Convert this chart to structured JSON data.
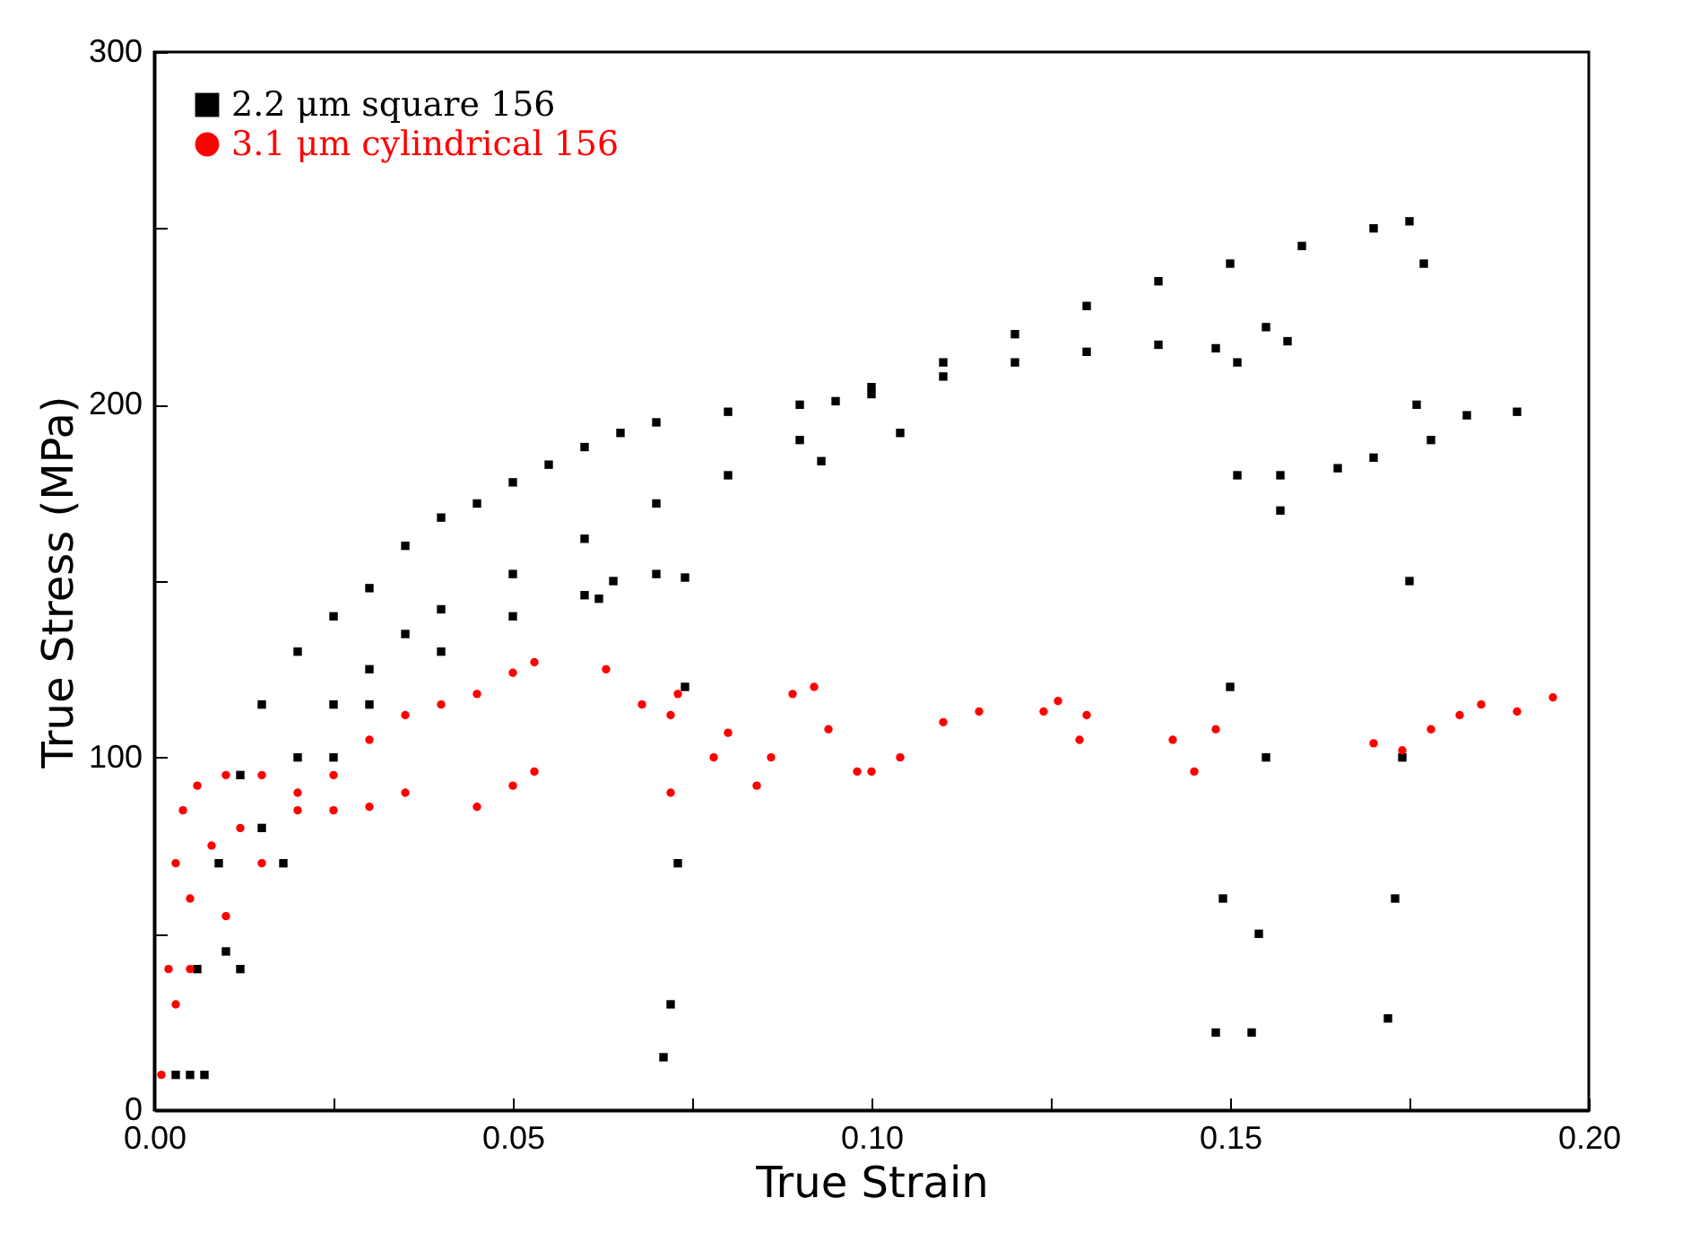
{
  "chart_data": {
    "type": "scatter",
    "xlabel": "True Strain",
    "ylabel": "True Stress (MPa)",
    "xlim": [
      0,
      0.2
    ],
    "ylim": [
      0,
      300
    ],
    "xticks": [
      {
        "value": 0,
        "label": "0.00"
      },
      {
        "value": 0.025,
        "label": null
      },
      0.05,
      {
        "value": 0.075,
        "label": null
      },
      {
        "value": 0.1,
        "label": "0.10"
      },
      {
        "value": 0.125,
        "label": null
      },
      0.15,
      {
        "value": 0.175,
        "label": null
      },
      {
        "value": 0.2,
        "label": "0.20"
      }
    ],
    "yticks": [
      0,
      {
        "value": 50,
        "label": null
      },
      100,
      {
        "value": 150,
        "label": null
      },
      200,
      {
        "value": 250,
        "label": null
      },
      300
    ],
    "grid": false,
    "legend": "top left",
    "series": [
      {
        "name": "2.2 μm square   156",
        "color": "#000000",
        "marker": "square",
        "x": [
          0.003,
          0.006,
          0.009,
          0.012,
          0.015,
          0.02,
          0.025,
          0.03,
          0.035,
          0.04,
          0.045,
          0.05,
          0.055,
          0.06,
          0.065,
          0.07,
          0.08,
          0.09,
          0.095,
          0.1,
          0.11,
          0.12,
          0.13,
          0.14,
          0.15,
          0.16,
          0.17,
          0.175,
          0.177,
          0.176,
          0.175,
          0.174,
          0.173,
          0.172,
          0.005,
          0.01,
          0.015,
          0.02,
          0.025,
          0.03,
          0.035,
          0.04,
          0.05,
          0.06,
          0.07,
          0.08,
          0.09,
          0.1,
          0.11,
          0.12,
          0.13,
          0.14,
          0.148,
          0.151,
          0.151,
          0.15,
          0.149,
          0.148,
          0.155,
          0.158,
          0.157,
          0.155,
          0.154,
          0.153,
          0.007,
          0.012,
          0.018,
          0.025,
          0.03,
          0.04,
          0.05,
          0.06,
          0.07,
          0.074,
          0.074,
          0.073,
          0.072,
          0.071,
          0.062,
          0.064,
          0.157,
          0.165,
          0.17,
          0.178,
          0.183,
          0.19,
          0.104,
          0.093
        ],
        "values": [
          10,
          40,
          70,
          95,
          115,
          130,
          140,
          148,
          160,
          168,
          172,
          178,
          183,
          188,
          192,
          195,
          198,
          200,
          201,
          205,
          212,
          220,
          228,
          235,
          240,
          245,
          250,
          252,
          240,
          200,
          150,
          100,
          60,
          26,
          10,
          45,
          80,
          100,
          115,
          125,
          135,
          142,
          152,
          162,
          172,
          180,
          190,
          203,
          208,
          212,
          215,
          217,
          216,
          212,
          180,
          120,
          60,
          22,
          222,
          218,
          170,
          100,
          50,
          22,
          10,
          40,
          70,
          100,
          115,
          130,
          140,
          146,
          152,
          151,
          120,
          70,
          30,
          15,
          145,
          150,
          180,
          182,
          185,
          190,
          197,
          198,
          192,
          184
        ]
      },
      {
        "name": "3.1 μm cylindrical   156",
        "color": "#ff0000",
        "marker": "circle",
        "x": [
          0.001,
          0.002,
          0.003,
          0.004,
          0.006,
          0.01,
          0.015,
          0.003,
          0.005,
          0.008,
          0.012,
          0.02,
          0.025,
          0.03,
          0.035,
          0.045,
          0.05,
          0.053,
          0.005,
          0.01,
          0.015,
          0.02,
          0.025,
          0.03,
          0.035,
          0.04,
          0.045,
          0.05,
          0.053,
          0.063,
          0.068,
          0.072,
          0.073,
          0.072,
          0.078,
          0.08,
          0.084,
          0.086,
          0.089,
          0.092,
          0.094,
          0.098,
          0.1,
          0.104,
          0.11,
          0.115,
          0.124,
          0.126,
          0.129,
          0.13,
          0.142,
          0.145,
          0.148,
          0.17,
          0.174,
          0.178,
          0.182,
          0.185,
          0.19,
          0.195
        ],
        "values": [
          10,
          40,
          70,
          85,
          92,
          95,
          95,
          30,
          60,
          75,
          80,
          85,
          85,
          86,
          90,
          86,
          92,
          96,
          40,
          55,
          70,
          90,
          95,
          105,
          112,
          115,
          118,
          124,
          127,
          125,
          115,
          112,
          118,
          90,
          100,
          107,
          92,
          100,
          118,
          120,
          108,
          96,
          96,
          100,
          110,
          113,
          113,
          116,
          105,
          112,
          105,
          96,
          108,
          104,
          102,
          108,
          112,
          115,
          113,
          117
        ]
      }
    ]
  }
}
